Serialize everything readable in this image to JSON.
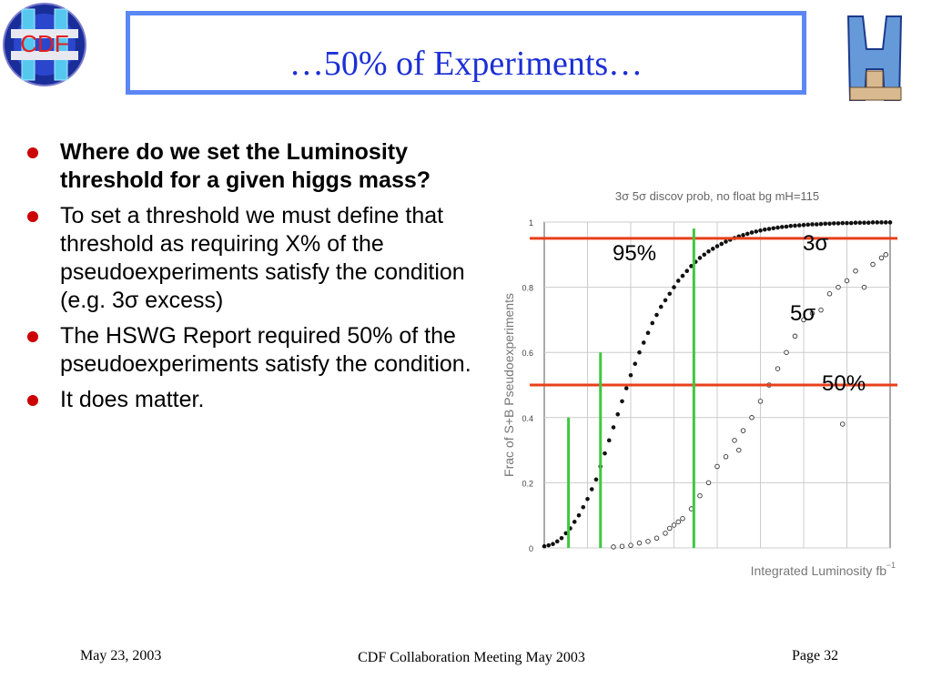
{
  "slide": {
    "title": "…50% of Experiments…",
    "logo_left_text": "CDF"
  },
  "bullets": [
    {
      "text": "Where do we set the Luminosity threshold for a given higgs mass?",
      "bold": true
    },
    {
      "text": "To set a threshold we must define that threshold as requiring X% of the pseudoexperiments satisfy the condition (e.g. 3σ excess)",
      "bold": false
    },
    {
      "text": "The HSWG Report required 50% of the pseudoexperiments satisfy the condition.",
      "bold": false
    },
    {
      "text": "It does matter.",
      "bold": false
    }
  ],
  "footer": {
    "date": "May 23, 2003",
    "center": "CDF Collaboration Meeting May 2003",
    "page": "Page 32"
  },
  "colors": {
    "title_border": "#5b87f5",
    "title_text": "#1c2fd6",
    "bullet": "#cc0000",
    "threshold_line": "#e8401c",
    "marker_line": "#3ec83e"
  },
  "chart_data": {
    "type": "scatter",
    "title": "3σ 5σ discov prob, no float bg mH=115",
    "xlabel": "Integrated Luminosity fb",
    "xlabel_superscript": "−1",
    "ylabel": "Frac of S+B Pseudoexperiments",
    "ylim": [
      0,
      1
    ],
    "yticks": [
      "0",
      "0.2",
      "0.4",
      "0.6",
      "0.8",
      "1"
    ],
    "grid": true,
    "series": [
      {
        "name": "3σ",
        "marker": "filled",
        "x": [
          0.0,
          0.5,
          1.0,
          1.5,
          2.0,
          2.5,
          3.0,
          3.5,
          4.0,
          4.5,
          5.0,
          5.5,
          6.0,
          6.5,
          7.0,
          7.5,
          8.0,
          8.5,
          9.0,
          9.5,
          10.0,
          10.5,
          11.0,
          11.5,
          12.0,
          12.5,
          13.0,
          13.5,
          14.0,
          14.5,
          15.0,
          15.5,
          16.0,
          16.5,
          17.0,
          17.5,
          18.0,
          18.5,
          19.0,
          19.5,
          20.0,
          20.5,
          21.0,
          21.5,
          22.0,
          22.5,
          23.0,
          23.5,
          24.0,
          24.5,
          25.0,
          25.5,
          26.0,
          26.5,
          27.0,
          27.5,
          28.0,
          28.5,
          29.0,
          29.5,
          30.0,
          30.5,
          31.0,
          31.5,
          32.0,
          32.5,
          33.0,
          33.5,
          34.0,
          34.5,
          35.0,
          35.5,
          36.0,
          36.5,
          37.0,
          37.5,
          38.0,
          38.5,
          39.0,
          39.5,
          40.0
        ],
        "y": [
          0.005,
          0.008,
          0.012,
          0.02,
          0.03,
          0.045,
          0.06,
          0.08,
          0.1,
          0.125,
          0.15,
          0.18,
          0.21,
          0.25,
          0.29,
          0.33,
          0.37,
          0.41,
          0.45,
          0.49,
          0.53,
          0.565,
          0.6,
          0.63,
          0.66,
          0.69,
          0.715,
          0.74,
          0.76,
          0.78,
          0.8,
          0.82,
          0.835,
          0.85,
          0.865,
          0.878,
          0.89,
          0.9,
          0.91,
          0.918,
          0.926,
          0.933,
          0.94,
          0.946,
          0.951,
          0.956,
          0.96,
          0.964,
          0.968,
          0.971,
          0.974,
          0.977,
          0.979,
          0.981,
          0.983,
          0.985,
          0.986,
          0.988,
          0.989,
          0.99,
          0.991,
          0.992,
          0.993,
          0.993,
          0.994,
          0.995,
          0.995,
          0.996,
          0.996,
          0.997,
          0.997,
          0.997,
          0.998,
          0.998,
          0.998,
          0.998,
          0.999,
          0.999,
          0.999,
          0.999,
          0.999
        ]
      },
      {
        "name": "5σ",
        "marker": "open",
        "x": [
          8,
          9,
          10,
          11,
          12,
          13,
          14,
          14.5,
          15,
          15.5,
          16,
          17,
          18,
          19,
          20,
          21,
          22,
          22.5,
          23,
          24,
          25,
          26,
          27,
          28,
          29,
          30,
          31,
          32,
          33,
          34,
          34.5,
          35,
          36,
          37,
          38,
          39,
          39.5
        ],
        "y": [
          0.003,
          0.005,
          0.008,
          0.015,
          0.02,
          0.03,
          0.045,
          0.06,
          0.07,
          0.08,
          0.09,
          0.12,
          0.16,
          0.2,
          0.25,
          0.28,
          0.33,
          0.3,
          0.36,
          0.4,
          0.45,
          0.5,
          0.55,
          0.6,
          0.65,
          0.7,
          0.72,
          0.73,
          0.78,
          0.8,
          0.38,
          0.82,
          0.85,
          0.8,
          0.87,
          0.89,
          0.9
        ]
      }
    ],
    "annotations": [
      "95%",
      "3σ",
      "5σ",
      "50%"
    ],
    "threshold_lines": [
      0.95,
      0.5
    ],
    "marker_lines": [
      {
        "x": 2.8,
        "y_top": 0.4
      },
      {
        "x": 6.5,
        "y_top": 0.6
      },
      {
        "x": 17.3,
        "y_top": 0.98
      }
    ]
  }
}
